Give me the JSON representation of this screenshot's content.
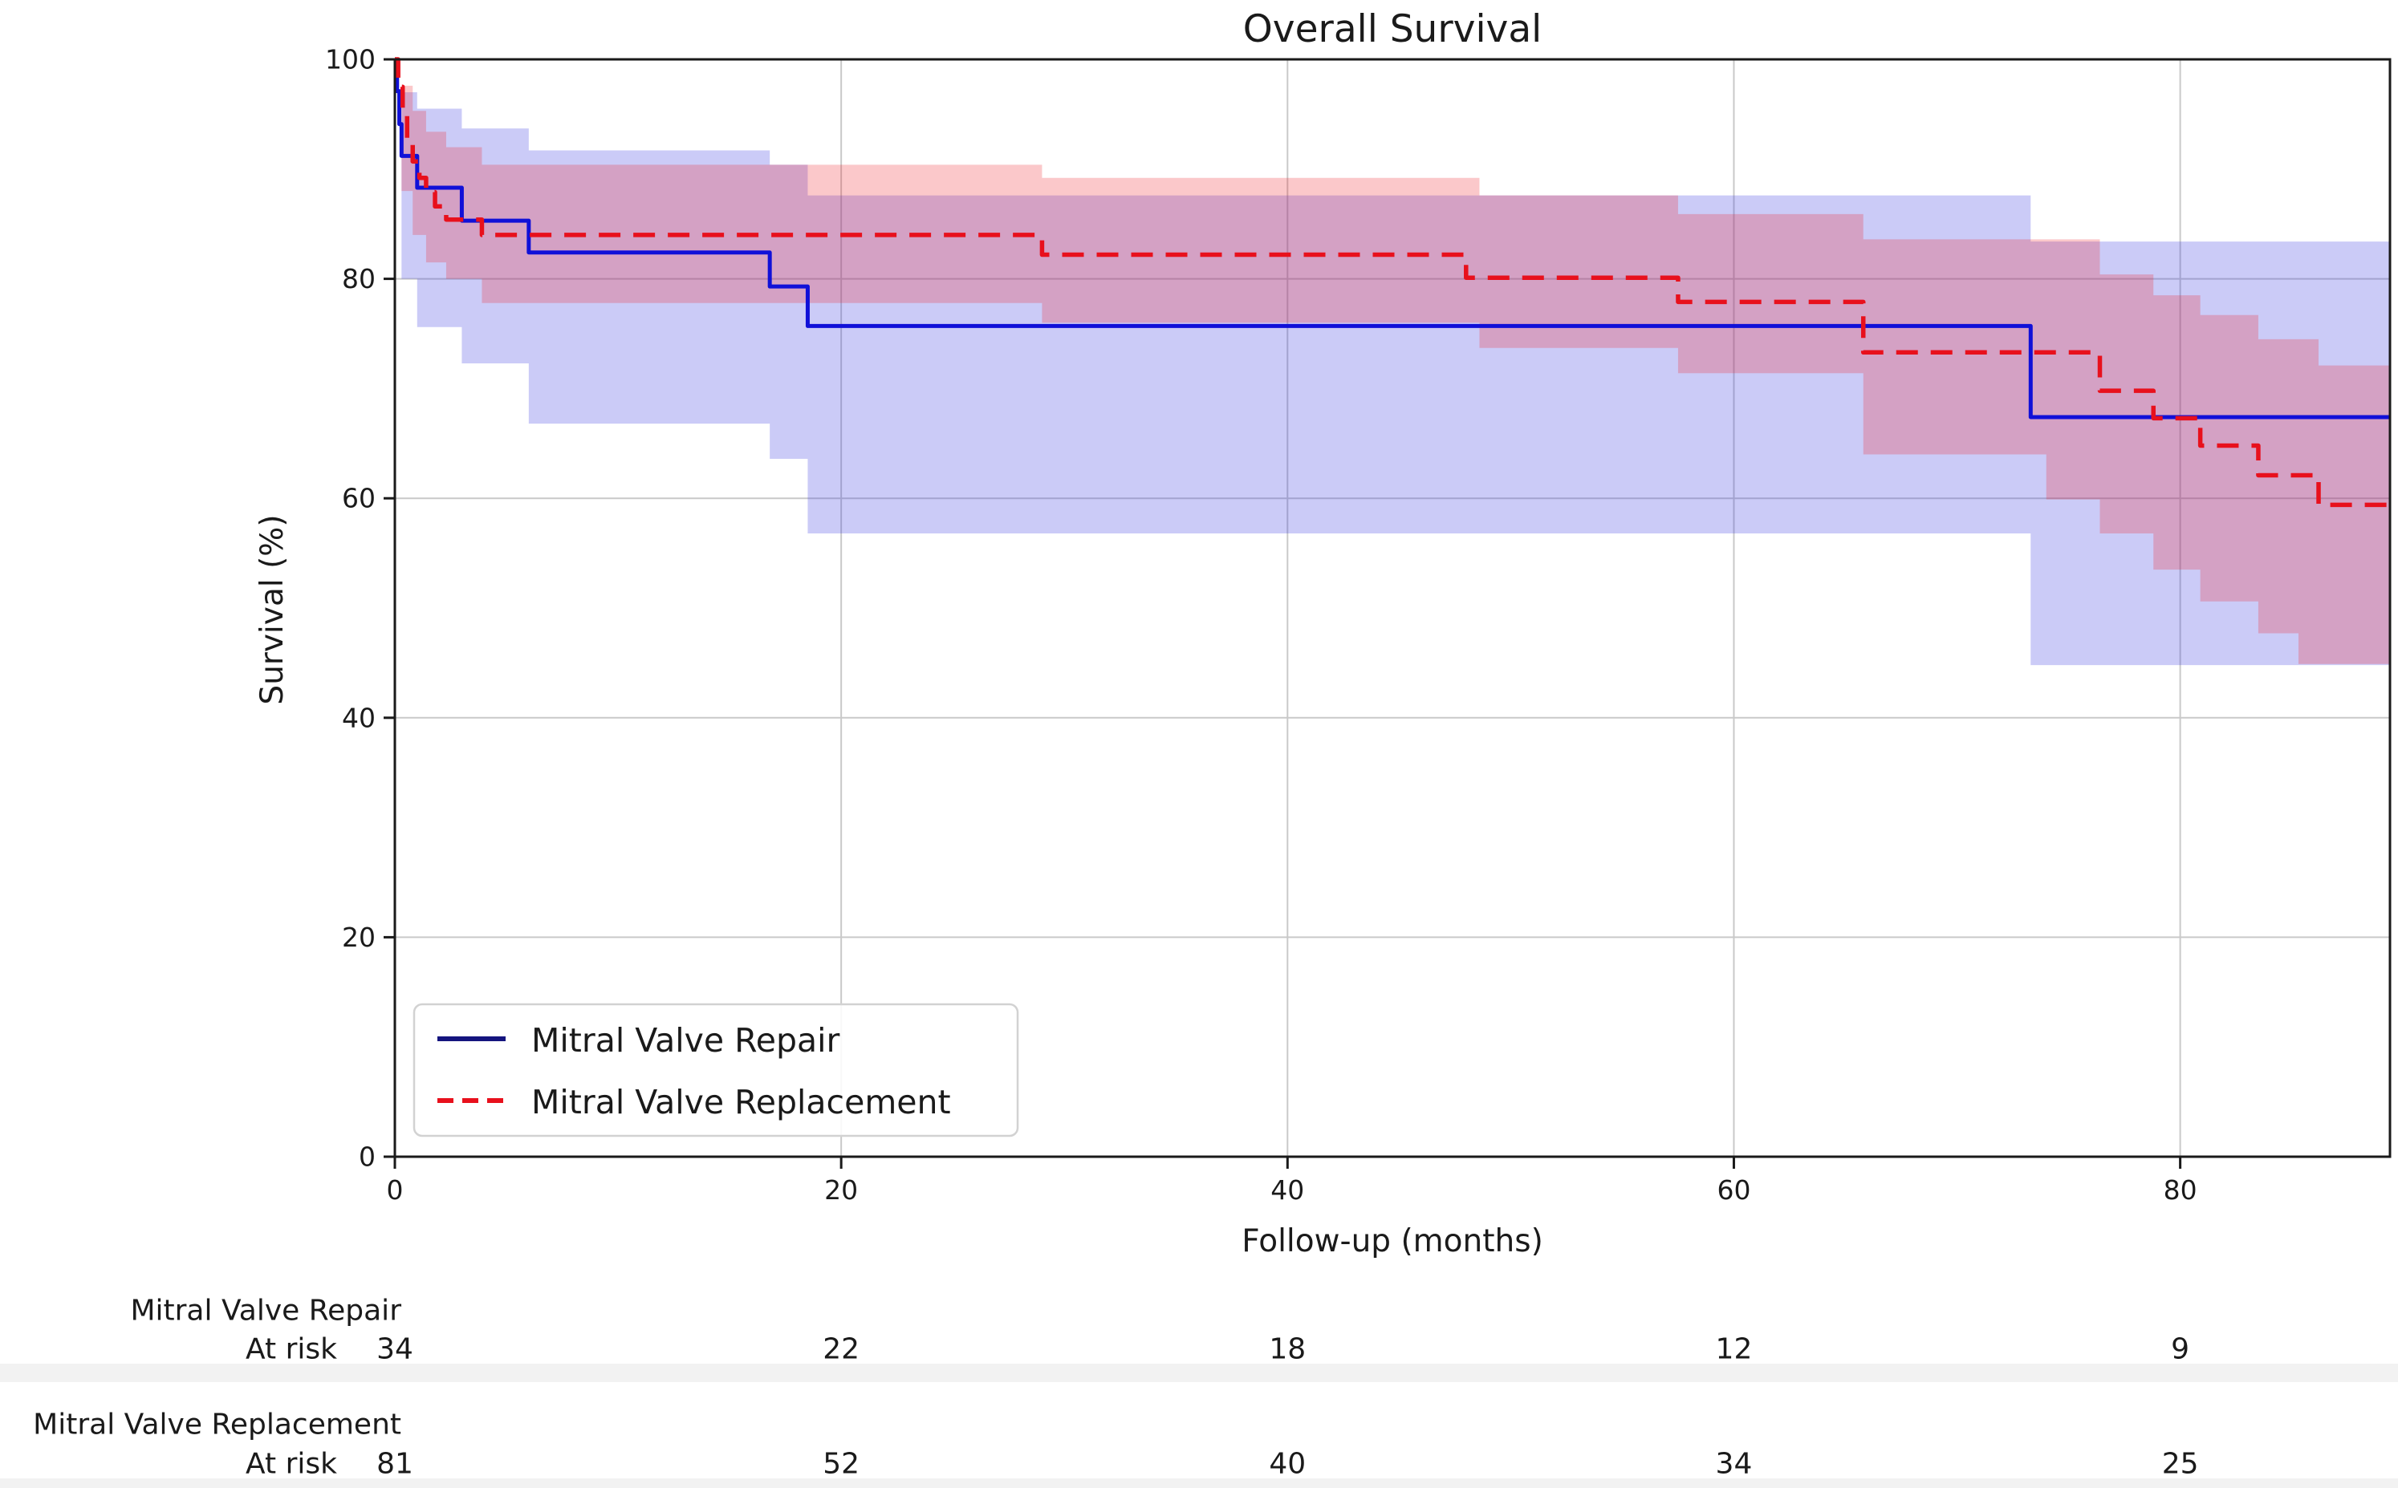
{
  "title": "Overall Survival",
  "axes": {
    "x_label": "Follow-up (months)",
    "y_label": "Survival (%)",
    "x_ticks": [
      0,
      20,
      40,
      60,
      80
    ],
    "y_ticks": [
      0,
      20,
      40,
      60,
      80,
      100
    ],
    "x_min": 0,
    "x_max": 89.4,
    "y_min": 0,
    "y_max": 100,
    "grid": true
  },
  "colors": {
    "repair": "#1010d8",
    "repair_legend": "#14147e",
    "replacement": "#e8101c",
    "repair_fill": "rgba(55,55,225,0.26)",
    "replacement_fill": "rgba(240,35,45,0.25)",
    "grid": "#c9c9c9",
    "spine": "#1a1a1a",
    "text": "#1a1a1a"
  },
  "chart_data": {
    "type": "line",
    "subtype": "kaplan-meier-step",
    "title": "Overall Survival",
    "xlabel": "Follow-up (months)",
    "ylabel": "Survival (%)",
    "xlim": [
      0,
      89.4
    ],
    "ylim": [
      0,
      100
    ],
    "legend_position": "lower-left",
    "series": [
      {
        "name": "Mitral Valve Repair",
        "style": "solid",
        "color_key": "repair",
        "points": [
          [
            0,
            100
          ],
          [
            0.1,
            97.1
          ],
          [
            0.2,
            94.1
          ],
          [
            0.3,
            91.2
          ],
          [
            1,
            88.3
          ],
          [
            3,
            85.3
          ],
          [
            6,
            82.4
          ],
          [
            16.8,
            79.3
          ],
          [
            18.5,
            75.7
          ],
          [
            73.3,
            67.4
          ]
        ],
        "ci_upper": [
          [
            0,
            100
          ],
          [
            0.3,
            97.0
          ],
          [
            1,
            95.5
          ],
          [
            3,
            93.7
          ],
          [
            6,
            91.7
          ],
          [
            16.8,
            90.4
          ],
          [
            18.5,
            87.6
          ],
          [
            73.3,
            83.4
          ]
        ],
        "ci_lower": [
          [
            0,
            100
          ],
          [
            0.3,
            80.0
          ],
          [
            1,
            75.6
          ],
          [
            3,
            72.3
          ],
          [
            6,
            66.8
          ],
          [
            16.8,
            63.6
          ],
          [
            18.5,
            56.8
          ],
          [
            73.3,
            44.8
          ]
        ]
      },
      {
        "name": "Mitral Valve Replacement",
        "style": "dashed",
        "color_key": "replacement",
        "points": [
          [
            0,
            100
          ],
          [
            0.15,
            97.5
          ],
          [
            0.35,
            95.1
          ],
          [
            0.55,
            92.8
          ],
          [
            0.8,
            90.7
          ],
          [
            1.1,
            89.2
          ],
          [
            1.4,
            87.9
          ],
          [
            1.8,
            86.6
          ],
          [
            2.3,
            85.4
          ],
          [
            3.9,
            84.0
          ],
          [
            29,
            82.2
          ],
          [
            48,
            80.1
          ],
          [
            57.5,
            77.9
          ],
          [
            65.8,
            73.3
          ],
          [
            76.4,
            69.8
          ],
          [
            78.8,
            67.3
          ],
          [
            80.9,
            64.8
          ],
          [
            83.5,
            62.1
          ],
          [
            86.2,
            59.4
          ]
        ],
        "ci_upper": [
          [
            0,
            100
          ],
          [
            0.3,
            97.6
          ],
          [
            0.8,
            95.3
          ],
          [
            1.4,
            93.4
          ],
          [
            2.3,
            92.0
          ],
          [
            3.9,
            90.4
          ],
          [
            29,
            89.2
          ],
          [
            48.6,
            87.6
          ],
          [
            57.5,
            85.9
          ],
          [
            65.8,
            83.6
          ],
          [
            76.4,
            80.4
          ],
          [
            78.8,
            78.5
          ],
          [
            80.9,
            76.7
          ],
          [
            83.5,
            74.5
          ],
          [
            86.2,
            72.1
          ]
        ],
        "ci_lower": [
          [
            0,
            100
          ],
          [
            0.3,
            88.0
          ],
          [
            0.8,
            84.0
          ],
          [
            1.4,
            81.5
          ],
          [
            2.3,
            80.0
          ],
          [
            3.9,
            77.8
          ],
          [
            29,
            76.0
          ],
          [
            48.6,
            73.7
          ],
          [
            57.5,
            71.4
          ],
          [
            65.8,
            64.0
          ],
          [
            74,
            59.9
          ],
          [
            76.4,
            56.8
          ],
          [
            78.8,
            53.5
          ],
          [
            80.9,
            50.6
          ],
          [
            83.5,
            47.7
          ],
          [
            85.3,
            44.9
          ]
        ]
      }
    ]
  },
  "legend": {
    "entries": [
      {
        "label": "Mitral Valve Repair"
      },
      {
        "label": "Mitral Valve Replacement"
      }
    ]
  },
  "at_risk": {
    "prefix": "At risk",
    "rows": [
      {
        "label": "Mitral Valve Repair",
        "prefix": "At risk",
        "counts": [
          "34",
          "22",
          "18",
          "12",
          "9"
        ]
      },
      {
        "label": "Mitral Valve Replacement",
        "prefix": "At risk",
        "counts": [
          "81",
          "52",
          "40",
          "34",
          "25"
        ]
      }
    ]
  }
}
